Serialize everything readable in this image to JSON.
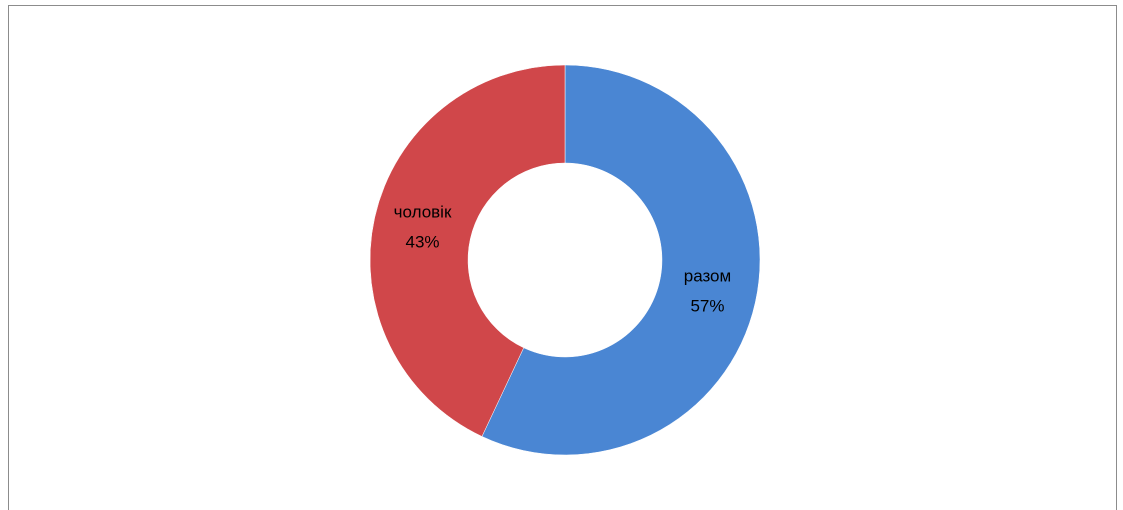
{
  "chart_data": {
    "type": "donut",
    "categories": [
      "разом",
      "чоловік"
    ],
    "values": [
      57,
      43
    ],
    "value_labels": [
      "57%",
      "43%"
    ],
    "colors": [
      "#4a86d3",
      "#d0474a"
    ]
  }
}
